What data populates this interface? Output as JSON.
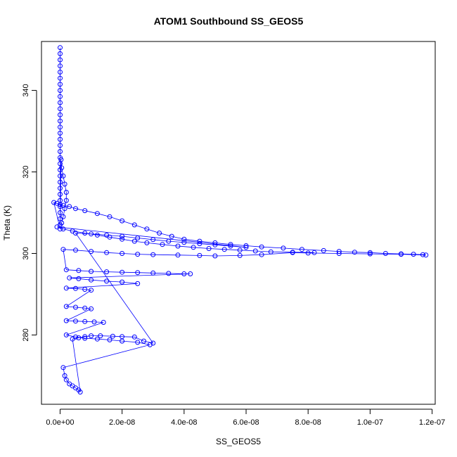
{
  "chart_data": {
    "type": "scatter",
    "title": "ATOM1 Southbound SS_GEOS5",
    "xlabel": "SS_GEOS5",
    "ylabel": "Theta (K)",
    "xlim": [
      -6e-09,
      1.21e-07
    ],
    "ylim": [
      263,
      352
    ],
    "x_ticks": [
      0,
      2e-08,
      4e-08,
      6e-08,
      8e-08,
      1e-07,
      1.2e-07
    ],
    "x_tick_labels": [
      "0.0e+00",
      "2.0e-08",
      "4.0e-08",
      "6.0e-08",
      "8.0e-08",
      "1.0e-07",
      "1.2e-07"
    ],
    "y_ticks": [
      280,
      300,
      320,
      340
    ],
    "y_tick_labels": [
      "280",
      "300",
      "320",
      "340"
    ],
    "grid": false,
    "marker": "open-circle",
    "line": true,
    "color": "#0000ff",
    "series": [
      {
        "x": [
          0,
          0,
          0,
          0,
          0,
          0,
          0,
          0,
          0,
          0,
          0,
          0,
          0,
          0,
          0,
          0,
          0,
          0,
          0,
          0,
          0,
          0,
          0,
          0,
          0,
          0,
          0,
          0,
          0,
          0,
          3e-10,
          5e-10,
          1e-09,
          1.5e-09,
          2e-09,
          2e-09,
          1.5e-09,
          1e-09,
          5e-10,
          0,
          -2e-09,
          -1e-09,
          0,
          1e-09,
          3e-09,
          5e-09,
          8e-09,
          1.2e-08,
          1.6e-08,
          2e-08,
          2.4e-08,
          2.8e-08,
          3.2e-08,
          3.6e-08,
          4e-08,
          4.5e-08,
          5e-08,
          5.5e-08,
          6e-08,
          6.5e-08,
          7.2e-08,
          7.8e-08,
          8.5e-08,
          9e-08,
          9.5e-08,
          1e-07,
          1.05e-07,
          1.1e-07,
          1.14e-07,
          1.17e-07,
          1.18e-07,
          1.1e-07,
          1e-07,
          9e-08,
          8e-08,
          7.5e-08,
          6.5e-08,
          5.8e-08,
          5e-08,
          4.5e-08,
          3.8e-08,
          3e-08,
          2.5e-08,
          2e-08,
          1.5e-08,
          1e-08,
          5e-09,
          1e-09,
          2e-09,
          6e-09,
          1e-08,
          1.5e-08,
          2e-08,
          2.5e-08,
          3e-08,
          3.5e-08,
          4e-08,
          4.2e-08,
          3e-09,
          6e-09,
          1e-08,
          1.5e-08,
          2e-08,
          2.5e-08,
          2e-09,
          5e-09,
          8e-09,
          1e-08,
          2e-09,
          5e-09,
          8e-09,
          1e-08,
          2e-09,
          5e-09,
          8e-09,
          1.1e-08,
          1.4e-08,
          2e-09,
          5e-09,
          8e-09,
          1.2e-08,
          1.6e-08,
          2e-08,
          2.5e-08,
          2.9e-08,
          1e-09,
          1.5e-09,
          2e-09,
          3e-09,
          4e-09,
          5e-09,
          6e-09,
          6.5e-09,
          4e-09,
          6e-09,
          8e-09,
          1e-08,
          1.3e-08,
          1.7e-08,
          2e-08,
          2.4e-08,
          2.7e-08,
          3e-08,
          5e-09,
          1e-08,
          1.5e-08,
          2e-08,
          2.5e-08,
          3e-08,
          3.5e-08,
          4e-08,
          4.5e-08,
          5e-08,
          5.5e-08,
          6e-08,
          -1e-09,
          1e-09,
          4e-09,
          8e-09,
          1.2e-08,
          1.6e-08,
          2e-08,
          2.4e-08,
          2.8e-08,
          3.3e-08,
          3.8e-08,
          4.3e-08,
          4.8e-08,
          5.3e-08,
          5.8e-08,
          6.3e-08,
          6.8e-08,
          7.5e-08,
          8.2e-08
        ],
        "y": [
          350.5,
          349,
          347.5,
          346,
          344.5,
          343,
          341.5,
          340,
          338.5,
          337,
          335.5,
          334,
          332.5,
          331,
          329.5,
          328,
          326.5,
          325,
          323.5,
          322,
          320.5,
          319,
          317.5,
          316,
          314.5,
          313,
          311.5,
          310,
          308.5,
          307,
          323,
          321,
          319,
          317,
          315,
          313,
          311,
          309,
          307.5,
          306,
          312.5,
          312.3,
          312,
          311.8,
          311.5,
          311,
          310.5,
          309.8,
          309,
          308,
          307,
          306,
          305,
          304.2,
          303.5,
          303,
          302.6,
          302.2,
          301.9,
          301.6,
          301.3,
          301,
          300.7,
          300.5,
          300.3,
          300.2,
          300,
          299.9,
          299.8,
          299.7,
          299.6,
          299.8,
          299.9,
          300,
          300.1,
          300.2,
          299.7,
          299.5,
          299.4,
          299.5,
          299.6,
          299.7,
          299.8,
          300,
          300.2,
          300.5,
          300.8,
          301,
          296,
          295.8,
          295.6,
          295.5,
          295.4,
          295.3,
          295.2,
          295.1,
          295,
          295,
          294,
          293.8,
          293.5,
          293.2,
          293,
          292.6,
          291.5,
          291.4,
          291.2,
          291,
          287,
          286.8,
          286.6,
          286.4,
          283.5,
          283.4,
          283.3,
          283.2,
          283.1,
          280,
          279.5,
          279.2,
          279,
          278.8,
          278.5,
          278.2,
          277.6,
          272,
          270,
          269,
          268,
          267.5,
          267,
          266.5,
          266,
          279,
          279.3,
          279.6,
          279.8,
          279.8,
          279.7,
          279.6,
          279.5,
          278.5,
          278,
          305,
          304.8,
          304.5,
          304.2,
          303.8,
          303.4,
          303,
          302.7,
          302.4,
          302.1,
          301.8,
          301.5,
          306.5,
          306,
          305.5,
          305,
          304.5,
          304,
          303.5,
          303,
          302.6,
          302.2,
          301.8,
          301.5,
          301.2,
          301,
          300.8,
          300.6,
          300.4,
          300.3,
          300.2
        ]
      }
    ]
  }
}
